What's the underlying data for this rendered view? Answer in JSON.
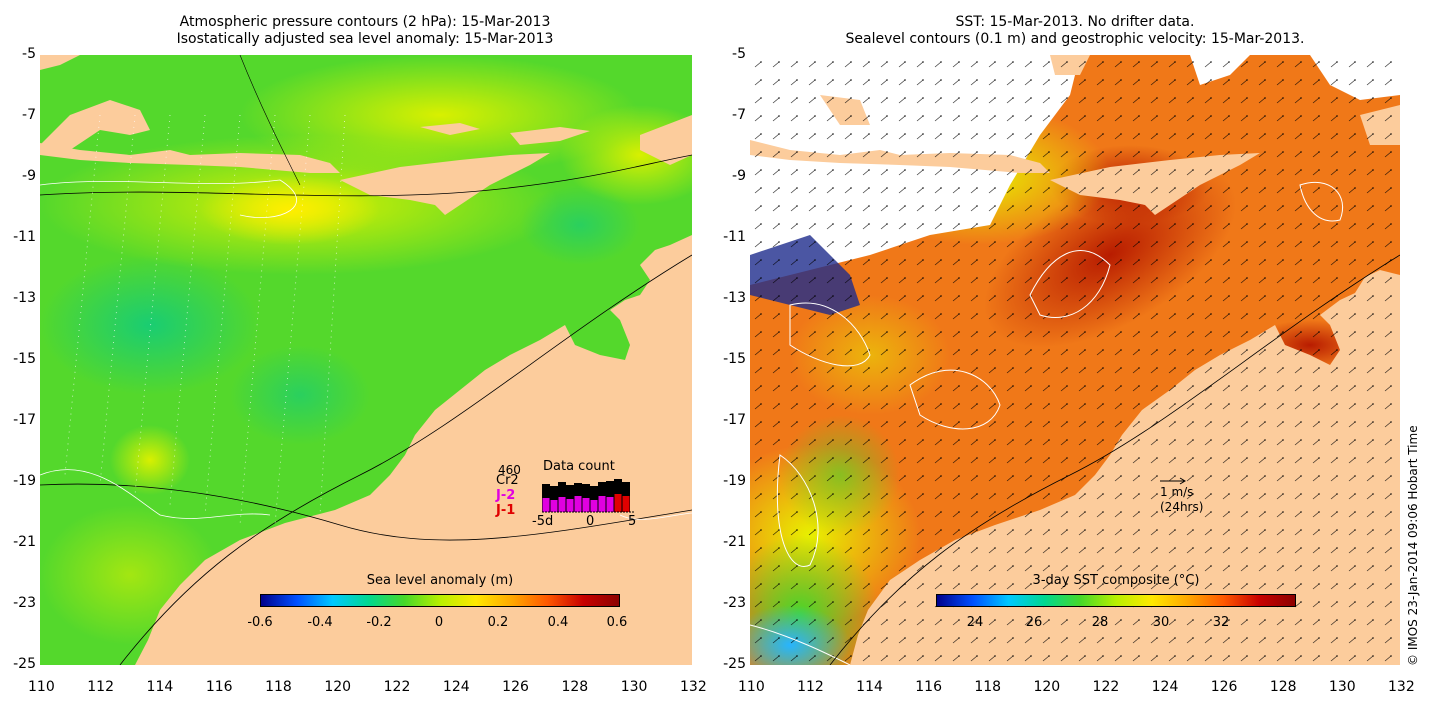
{
  "left_panel": {
    "title_line1": "Atmospheric pressure contours (2 hPa): 15-Mar-2013",
    "title_line2": "Isostatically adjusted sea level anomaly: 15-Mar-2013",
    "colorbar_title": "Sea level anomaly (m)",
    "colorbar_ticks": [
      "-0.6",
      "-0.4",
      "-0.2",
      "0",
      "0.2",
      "0.4",
      "0.6"
    ],
    "data_count": {
      "title": "Data count",
      "max_label": "460",
      "missions": [
        {
          "name": "Cr2",
          "color": "#000000"
        },
        {
          "name": "J-2",
          "color": "#e000e0"
        },
        {
          "name": "J-1",
          "color": "#e00000"
        }
      ],
      "x_labels": [
        "-5d",
        "0",
        "5"
      ]
    }
  },
  "right_panel": {
    "title_line1": "SST: 15-Mar-2013. No drifter data.",
    "title_line2": "Sealevel contours (0.1 m) and geostrophic velocity: 15-Mar-2013.",
    "colorbar_title": "3-day SST composite (°C)",
    "colorbar_ticks": [
      "24",
      "26",
      "28",
      "30",
      "32"
    ],
    "velocity_scale_label": "1 m/s",
    "velocity_scale_note": "(24hrs)"
  },
  "axes": {
    "lon_ticks": [
      "110",
      "112",
      "114",
      "116",
      "118",
      "120",
      "122",
      "124",
      "126",
      "128",
      "130",
      "132"
    ],
    "lat_ticks": [
      "-5",
      "-7",
      "-9",
      "-11",
      "-13",
      "-15",
      "-17",
      "-19",
      "-21",
      "-23",
      "-25"
    ]
  },
  "credit": "© IMOS 23-Jan-2014 09:06 Hobart Time",
  "colors": {
    "land": "#fccc9c",
    "no_data": "#ffffff"
  }
}
